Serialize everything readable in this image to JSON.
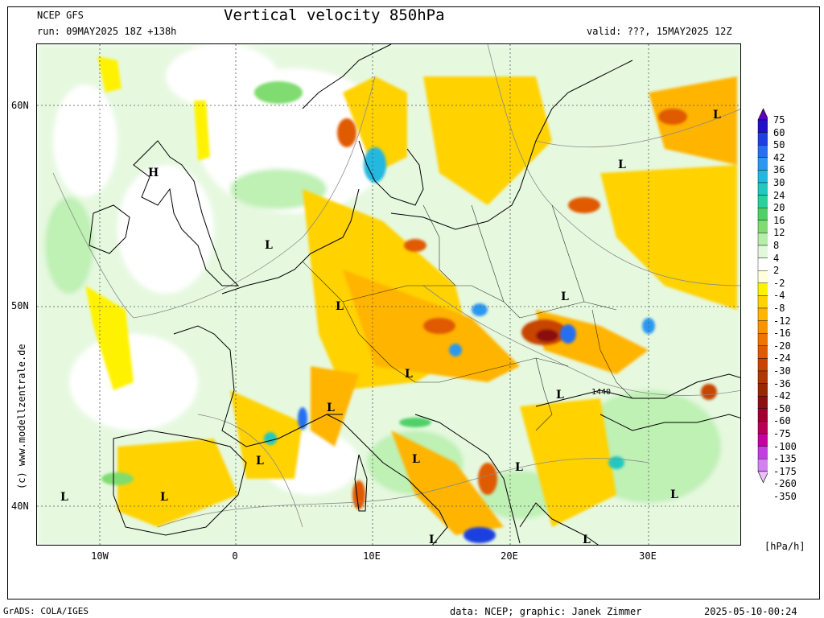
{
  "header": {
    "model": "NCEP GFS",
    "run": "run: 09MAY2025 18Z +138h",
    "title": "Vertical velocity 850hPa",
    "valid": "valid: ???, 15MAY2025 12Z"
  },
  "copyright": "(c) www.modellzentrale.de",
  "axes": {
    "lat_labels": [
      "60N",
      "50N",
      "40N"
    ],
    "lon_labels": [
      "10W",
      "0",
      "10E",
      "20E",
      "30E"
    ]
  },
  "pressure_labels": [
    {
      "text": "L"
    },
    {
      "text": "L"
    },
    {
      "text": "L"
    },
    {
      "text": "L"
    },
    {
      "text": "L"
    },
    {
      "text": "L"
    },
    {
      "text": "L"
    },
    {
      "text": "L"
    },
    {
      "text": "L"
    },
    {
      "text": "L"
    },
    {
      "text": "L"
    },
    {
      "text": "L"
    },
    {
      "text": "L"
    },
    {
      "text": "L"
    },
    {
      "text": "L"
    },
    {
      "text": "L"
    },
    {
      "text": "H"
    }
  ],
  "contour_label": "1440",
  "colorbar": {
    "labels": [
      "75",
      "60",
      "50",
      "42",
      "36",
      "30",
      "24",
      "20",
      "16",
      "12",
      "8",
      "4",
      "2",
      "-2",
      "-4",
      "-8",
      "-12",
      "-16",
      "-20",
      "-24",
      "-30",
      "-36",
      "-42",
      "-50",
      "-60",
      "-75",
      "-100",
      "-135",
      "-175",
      "-260",
      "-350"
    ],
    "colors": [
      "#6000c0",
      "#2010c8",
      "#1e40e0",
      "#2870f0",
      "#2c98f0",
      "#22b8e0",
      "#20c8c0",
      "#2cd09c",
      "#50d068",
      "#80dc70",
      "#b4eea8",
      "#e2f8da",
      "#ffffff",
      "#ffffdc",
      "#fff200",
      "#ffd200",
      "#ffb400",
      "#f89400",
      "#f07400",
      "#e05a00",
      "#c84400",
      "#b03800",
      "#982800",
      "#8c1010",
      "#a00030",
      "#b80058",
      "#c800a0",
      "#c040e0",
      "#d480f0",
      "#ecc0f8"
    ],
    "units": "[hPa/h]"
  },
  "footer": {
    "left": "GrADS: COLA/IGES",
    "middle": "data: NCEP; graphic: Janek Zimmer",
    "right": "2025-05-10-00:24"
  }
}
